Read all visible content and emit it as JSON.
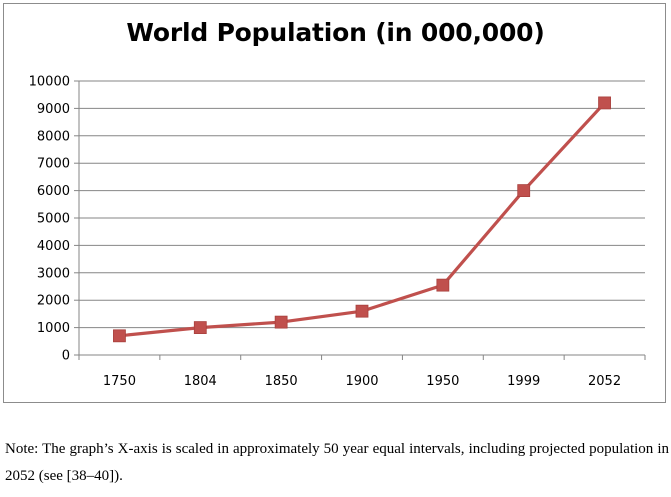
{
  "chart_data": {
    "type": "line",
    "title": "World Population (in 000,000)",
    "xlabel": "",
    "ylabel": "",
    "categories": [
      "1750",
      "1804",
      "1850",
      "1900",
      "1950",
      "1999",
      "2052"
    ],
    "series": [
      {
        "values": [
          700,
          1000,
          1200,
          1600,
          2550,
          6000,
          9200
        ],
        "color": "#c0504d",
        "marker": "square"
      }
    ],
    "ylim": [
      0,
      10000
    ],
    "yticks": [
      0,
      1000,
      2000,
      3000,
      4000,
      5000,
      6000,
      7000,
      8000,
      9000,
      10000
    ],
    "grid": true,
    "legend": "none"
  },
  "note": "Note: The graph’s X-axis is scaled in approximately 50 year equal intervals, including projected population in 2052 (see [38–40])."
}
